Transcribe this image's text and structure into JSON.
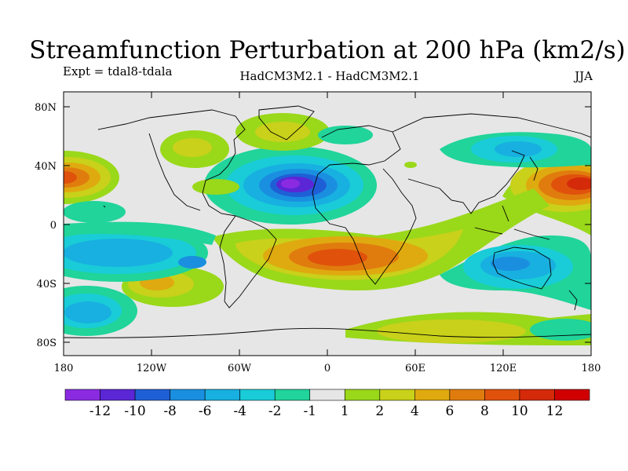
{
  "chart_data": {
    "type": "heatmap",
    "title": "Streamfunction Perturbation at 200 hPa (km2/s)",
    "experiment_label": "Expt = tdal8-tdala",
    "model_label": "HadCM3M2.1 - HadCM3M2.1",
    "season_label": "JJA",
    "x_ticks": [
      "180",
      "120W",
      "60W",
      "0",
      "60E",
      "120E",
      "180"
    ],
    "y_ticks": [
      "80N",
      "40N",
      "0",
      "40S",
      "80S"
    ],
    "lon_range": [
      -180,
      180
    ],
    "lat_range": [
      -90,
      90
    ],
    "colorbar_labels": [
      "-12",
      "-10",
      "-8",
      "-6",
      "-4",
      "-2",
      "-1",
      "1",
      "2",
      "4",
      "6",
      "8",
      "10",
      "12"
    ],
    "colorbar_colors": [
      "#8a2be2",
      "#5b26d6",
      "#1f5fd6",
      "#1a8fe0",
      "#18b0e0",
      "#19ccd8",
      "#20d49a",
      "#e6e6e6",
      "#9ad81a",
      "#c9d11a",
      "#dfaa10",
      "#e07c0e",
      "#e0520c",
      "#d42a0a",
      "#d00000"
    ],
    "features": [
      {
        "lon": -20,
        "lat": 30,
        "value": -13
      },
      {
        "lon": 165,
        "lat": 28,
        "value": 10
      },
      {
        "lon": -178,
        "lat": 32,
        "value": 8
      },
      {
        "lon": 5,
        "lat": -25,
        "value": 8
      },
      {
        "lon": 40,
        "lat": -22,
        "value": 5
      },
      {
        "lon": -100,
        "lat": -40,
        "value": 4
      },
      {
        "lon": 120,
        "lat": -28,
        "value": -5
      },
      {
        "lon": 160,
        "lat": -40,
        "value": -3
      },
      {
        "lon": -150,
        "lat": -20,
        "value": -4
      },
      {
        "lon": -160,
        "lat": -58,
        "value": -4
      },
      {
        "lon": 100,
        "lat": 55,
        "value": -3
      },
      {
        "lon": -10,
        "lat": 62,
        "value": 2
      },
      {
        "lon": 40,
        "lat": -70,
        "value": 3
      }
    ]
  }
}
